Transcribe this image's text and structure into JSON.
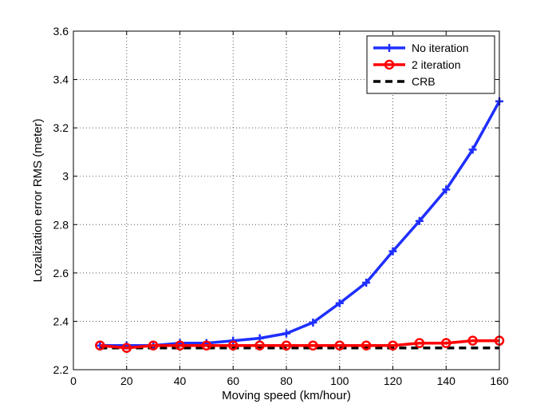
{
  "chart_data": {
    "type": "line",
    "xlabel": "Moving speed (km/hour)",
    "ylabel": "Lozalization error RMS (meter)",
    "xlim": [
      0,
      160
    ],
    "ylim": [
      2.2,
      3.6
    ],
    "xticks": [
      0,
      20,
      40,
      60,
      80,
      100,
      120,
      140,
      160
    ],
    "yticks": [
      2.2,
      2.4,
      2.6,
      2.8,
      3.0,
      3.2,
      3.4,
      3.6
    ],
    "xtick_labels": [
      "0",
      "20",
      "40",
      "60",
      "80",
      "100",
      "120",
      "140",
      "160"
    ],
    "ytick_labels": [
      "2.2",
      "2.4",
      "2.6",
      "2.8",
      "3",
      "3.2",
      "3.4",
      "3.6"
    ],
    "grid": true,
    "legend_position": "top-right",
    "x": [
      10,
      20,
      30,
      40,
      50,
      60,
      70,
      80,
      90,
      100,
      110,
      120,
      130,
      140,
      150,
      160
    ],
    "series": [
      {
        "name": "No iteration",
        "color": "#1f2fff",
        "marker": "plus",
        "line": "solid",
        "values": [
          2.3,
          2.3,
          2.3,
          2.31,
          2.31,
          2.32,
          2.33,
          2.35,
          2.395,
          2.475,
          2.56,
          2.69,
          2.815,
          2.945,
          3.11,
          3.31
        ]
      },
      {
        "name": "2 iteration",
        "color": "#ff0000",
        "marker": "circle",
        "line": "solid",
        "values": [
          2.3,
          2.29,
          2.3,
          2.3,
          2.3,
          2.3,
          2.3,
          2.3,
          2.3,
          2.3,
          2.3,
          2.3,
          2.31,
          2.31,
          2.32,
          2.32
        ]
      },
      {
        "name": "CRB",
        "color": "#000000",
        "marker": "none",
        "line": "dashed",
        "values": [
          2.29,
          2.29,
          2.29,
          2.29,
          2.29,
          2.29,
          2.29,
          2.29,
          2.29,
          2.29,
          2.29,
          2.29,
          2.29,
          2.29,
          2.29,
          2.29
        ]
      }
    ]
  }
}
